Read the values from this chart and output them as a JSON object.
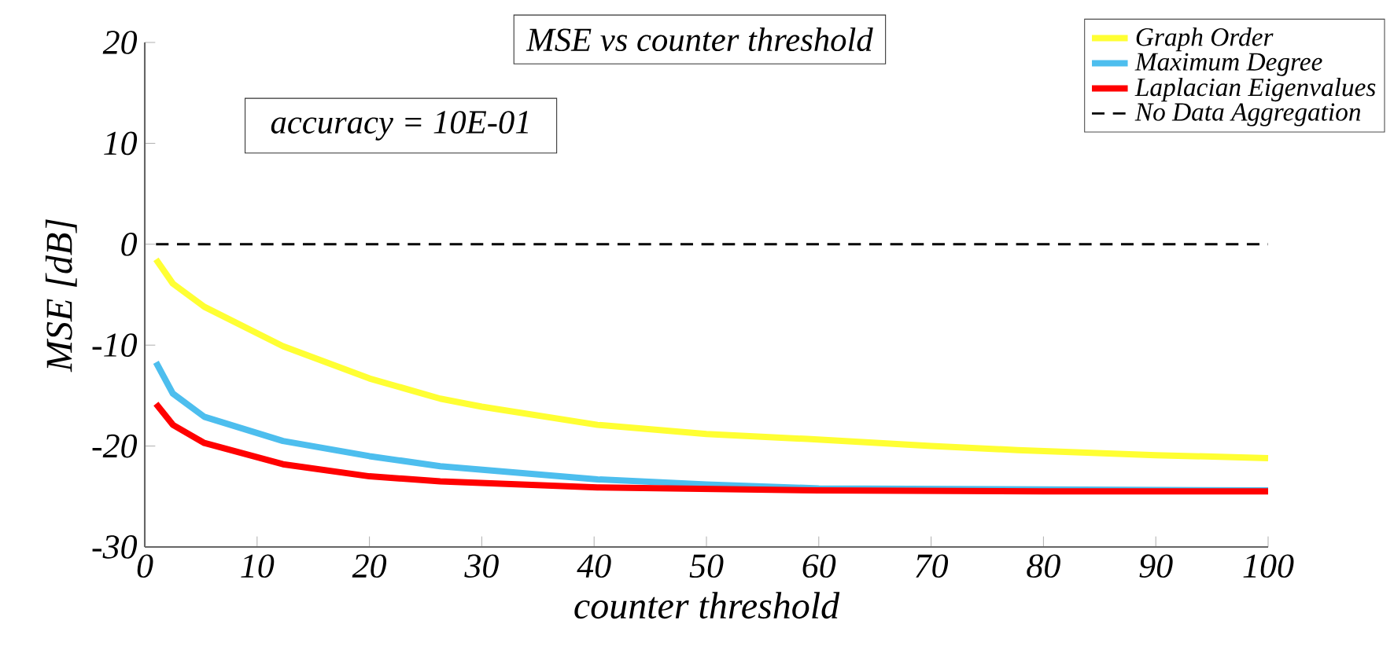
{
  "chart_data": {
    "type": "line",
    "title": "MSE vs counter threshold",
    "xlabel": "counter threshold",
    "ylabel": "MSE [dB]",
    "annotations": [
      "accuracy = 10E-01"
    ],
    "xlim": [
      0,
      100
    ],
    "ylim": [
      -30,
      20
    ],
    "xticks": [
      0,
      10,
      20,
      30,
      40,
      50,
      60,
      70,
      80,
      90,
      100
    ],
    "yticks": [
      -30,
      -20,
      -10,
      0,
      10,
      20
    ],
    "grid": false,
    "legend": "top right",
    "marker": "none",
    "series": [
      {
        "name": "Graph Order",
        "color": "#ffff33",
        "line_style": "solid",
        "x": [
          1,
          2.5,
          5.3,
          12.3,
          20,
          26.3,
          30,
          40.3,
          50,
          59,
          70,
          77.7,
          90,
          100
        ],
        "values": [
          -1.5,
          -3.9,
          -6.2,
          -10.1,
          -13.3,
          -15.3,
          -16.1,
          -17.9,
          -18.8,
          -19.3,
          -20.0,
          -20.4,
          -20.9,
          -21.2
        ]
      },
      {
        "name": "Maximum Degree",
        "color": "#4dbeee",
        "line_style": "solid",
        "x": [
          1,
          2.5,
          5.3,
          12.3,
          20,
          26.3,
          40.3,
          50,
          60,
          80,
          100
        ],
        "values": [
          -11.7,
          -14.8,
          -17.1,
          -19.5,
          -21.0,
          -22.0,
          -23.3,
          -23.8,
          -24.2,
          -24.3,
          -24.4
        ]
      },
      {
        "name": "Laplacian Eigenvalues",
        "color": "#ff0000",
        "line_style": "solid",
        "x": [
          1,
          2.5,
          5.3,
          12.3,
          20,
          26.3,
          40.3,
          60,
          80,
          100
        ],
        "values": [
          -15.8,
          -17.9,
          -19.7,
          -21.8,
          -23.0,
          -23.5,
          -24.1,
          -24.4,
          -24.5,
          -24.5
        ]
      },
      {
        "name": "No Data Aggregation",
        "color": "#000000",
        "line_style": "dashed",
        "x": [
          1,
          100
        ],
        "values": [
          0,
          0
        ]
      }
    ]
  }
}
